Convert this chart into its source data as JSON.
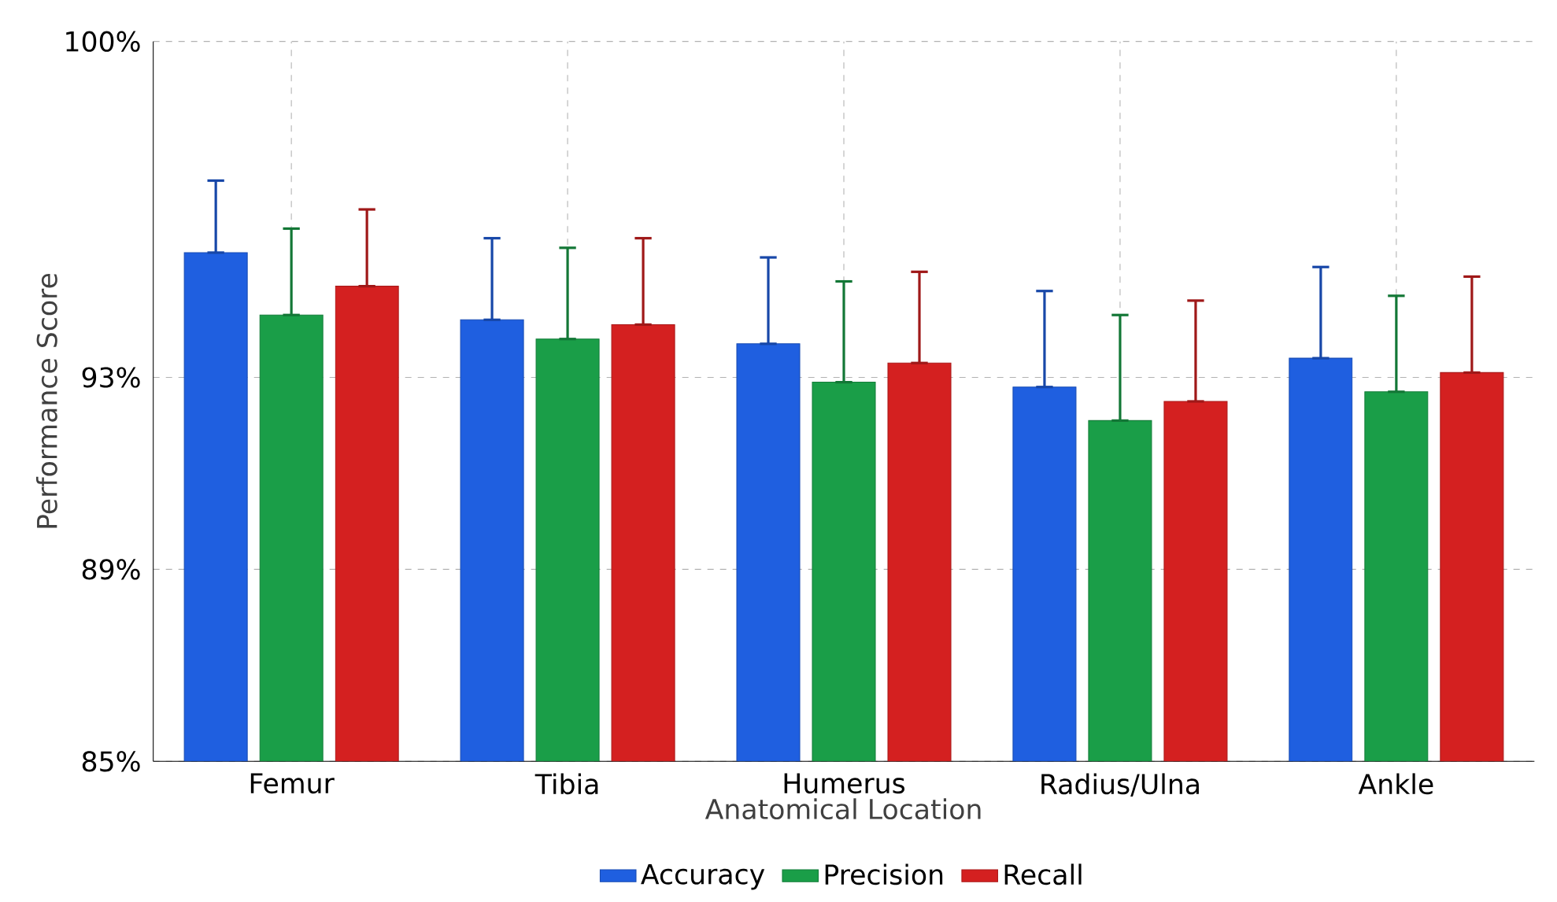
{
  "chart_data": {
    "type": "bar",
    "xlabel": "Anatomical Location",
    "ylabel": "Performance Score",
    "categories": [
      "Femur",
      "Tibia",
      "Humerus",
      "Radius/Ulna",
      "Ankle"
    ],
    "series": [
      {
        "name": "Accuracy",
        "color": "#1f5fe0",
        "values": [
          95.6,
          94.2,
          93.7,
          92.8,
          93.4
        ],
        "errors": [
          [
            95.6,
            97.1
          ],
          [
            94.2,
            95.9
          ],
          [
            93.7,
            95.5
          ],
          [
            92.8,
            94.8
          ],
          [
            93.4,
            95.3
          ]
        ]
      },
      {
        "name": "Precision",
        "color": "#1a9e48",
        "values": [
          94.3,
          93.8,
          92.9,
          92.1,
          92.7
        ],
        "errors": [
          [
            94.3,
            96.1
          ],
          [
            93.8,
            95.7
          ],
          [
            92.9,
            95.0
          ],
          [
            92.1,
            94.3
          ],
          [
            92.7,
            94.7
          ]
        ]
      },
      {
        "name": "Recall",
        "color": "#d42020",
        "values": [
          94.9,
          94.1,
          93.3,
          92.5,
          93.1
        ],
        "errors": [
          [
            94.9,
            96.5
          ],
          [
            94.1,
            95.9
          ],
          [
            93.3,
            95.2
          ],
          [
            92.5,
            94.6
          ],
          [
            93.1,
            95.1
          ]
        ]
      }
    ],
    "ylim": [
      85,
      100
    ],
    "yticks": [
      {
        "value": 85,
        "label": "85%"
      },
      {
        "value": 89,
        "label": "89%"
      },
      {
        "value": 93,
        "label": "93%"
      },
      {
        "value": 100,
        "label": "100%"
      }
    ],
    "grid": true,
    "legend": "bottom"
  }
}
